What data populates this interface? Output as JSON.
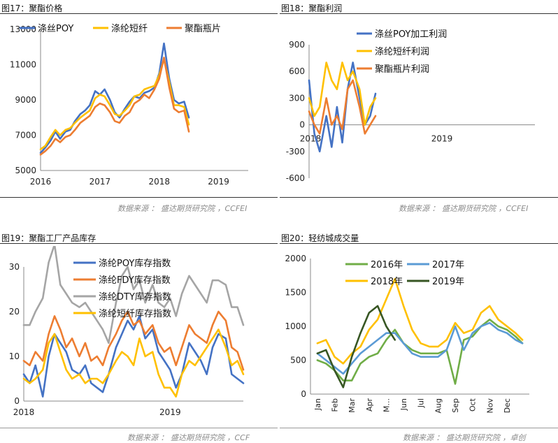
{
  "panels": [
    {
      "title": "图17：聚酯价格",
      "source": "数据来源 ： 盛达期货研究院 ，CCFEI"
    },
    {
      "title": "图18：聚酯利润",
      "source": "数据来源 ： 盛达期货研究院 ，CCFEI"
    },
    {
      "title": "图19：聚酯工厂产品库存",
      "source": "数据来源 ： 盛达期货研究院 ，CCF"
    },
    {
      "title": "图20：轻纺城成交量",
      "source": "数据来源 ： 盛达期货研究院 ，卓创"
    }
  ],
  "chart_data": [
    {
      "type": "line",
      "x_ticks": [
        "2016",
        "2017",
        "2018",
        "2019"
      ],
      "x": [
        2016.0,
        2016.08,
        2016.17,
        2016.25,
        2016.33,
        2016.42,
        2016.5,
        2016.58,
        2016.67,
        2016.75,
        2016.83,
        2016.92,
        2017.0,
        2017.08,
        2017.17,
        2017.25,
        2017.33,
        2017.42,
        2017.5,
        2017.58,
        2017.67,
        2017.75,
        2017.83,
        2017.92,
        2018.0,
        2018.08,
        2018.17,
        2018.25,
        2018.33,
        2018.42,
        2018.5
      ],
      "ylim": [
        5000,
        13000
      ],
      "y_ticks": [
        5000,
        7000,
        9000,
        11000,
        13000
      ],
      "legend_position": "top",
      "colors": [
        "#4472c4",
        "#ffc000",
        "#ed7d31"
      ],
      "series": [
        {
          "name": "涤丝POY",
          "values": [
            6000,
            6300,
            6700,
            7200,
            6800,
            7200,
            7300,
            7800,
            8200,
            8400,
            8700,
            9500,
            9300,
            9600,
            9000,
            8300,
            8000,
            8500,
            8900,
            9200,
            9100,
            9400,
            9500,
            9700,
            10500,
            12200,
            10200,
            9000,
            8800,
            8900,
            8000
          ]
        },
        {
          "name": "涤纶短纤",
          "values": [
            6200,
            6400,
            6900,
            7300,
            7000,
            7300,
            7400,
            7700,
            8000,
            8200,
            8400,
            9100,
            9300,
            9200,
            8700,
            8200,
            8100,
            8400,
            8700,
            9200,
            9300,
            9600,
            9700,
            9800,
            10400,
            11300,
            10000,
            8700,
            8700,
            8600,
            7600
          ]
        },
        {
          "name": "聚酯瓶片",
          "values": [
            5900,
            6100,
            6400,
            6800,
            6600,
            6900,
            7000,
            7300,
            7700,
            7900,
            8100,
            8600,
            8800,
            8700,
            8300,
            7800,
            7700,
            8100,
            8300,
            8800,
            9000,
            9300,
            9100,
            9600,
            10200,
            11400,
            9700,
            8500,
            8300,
            8400,
            7200
          ]
        }
      ]
    },
    {
      "type": "line",
      "x_ticks": [
        "2018",
        "2019"
      ],
      "x": [
        2018.0,
        2018.04,
        2018.08,
        2018.13,
        2018.17,
        2018.21,
        2018.25,
        2018.29,
        2018.33,
        2018.38,
        2018.42,
        2018.46,
        2018.5
      ],
      "ylim": [
        -600,
        900
      ],
      "y_ticks": [
        -600,
        -300,
        0,
        300,
        600,
        900
      ],
      "legend_position": "top-left",
      "colors": [
        "#4472c4",
        "#ffc000",
        "#ed7d31"
      ],
      "series": [
        {
          "name": "涤丝POY加工利润",
          "values": [
            500,
            -100,
            -300,
            100,
            -250,
            200,
            -200,
            400,
            700,
            300,
            0,
            100,
            350
          ]
        },
        {
          "name": "涤纶短纤利润",
          "values": [
            300,
            100,
            200,
            700,
            500,
            400,
            700,
            500,
            600,
            400,
            0,
            200,
            300
          ]
        },
        {
          "name": "聚酯瓶片利润",
          "values": [
            150,
            0,
            -100,
            300,
            0,
            100,
            -50,
            400,
            500,
            200,
            -100,
            0,
            100
          ]
        }
      ]
    },
    {
      "type": "line",
      "x_ticks": [
        "2018",
        "2019"
      ],
      "x": [
        2018.0,
        2018.04,
        2018.08,
        2018.13,
        2018.17,
        2018.21,
        2018.25,
        2018.29,
        2018.33,
        2018.38,
        2018.42,
        2018.46,
        2018.5,
        2018.54,
        2018.58,
        2018.63,
        2018.67,
        2018.71,
        2018.75,
        2018.79,
        2018.83,
        2018.88,
        2018.92,
        2018.96,
        2019.0,
        2019.04,
        2019.08,
        2019.13,
        2019.17,
        2019.21,
        2019.25,
        2019.29,
        2019.33,
        2019.38,
        2019.42,
        2019.46,
        2019.5
      ],
      "ylim": [
        0,
        30
      ],
      "y_ticks": [
        0,
        10,
        20,
        30
      ],
      "legend_position": "top",
      "colors": [
        "#4472c4",
        "#ed7d31",
        "#a5a5a5",
        "#ffc000"
      ],
      "series": [
        {
          "name": "涤纶POY库存指数",
          "values": [
            6,
            4,
            8,
            1,
            10,
            15,
            13,
            11,
            7,
            6,
            8,
            4,
            3,
            2,
            6,
            12,
            15,
            18,
            16,
            19,
            14,
            16,
            11,
            9,
            7,
            3,
            6,
            13,
            11,
            9,
            6,
            12,
            15,
            14,
            6,
            5,
            4
          ]
        },
        {
          "name": "涤纶FDY库存指数",
          "values": [
            9,
            8,
            11,
            9,
            15,
            19,
            16,
            12,
            14,
            10,
            13,
            9,
            10,
            8,
            12,
            15,
            18,
            20,
            17,
            18,
            15,
            17,
            13,
            11,
            12,
            8,
            12,
            17,
            15,
            14,
            13,
            17,
            20,
            18,
            12,
            11,
            7
          ]
        },
        {
          "name": "涤纶DTY库存指数",
          "values": [
            17,
            17,
            20,
            23,
            31,
            35,
            26,
            24,
            22,
            21,
            22,
            20,
            18,
            16,
            13,
            22,
            28,
            30,
            25,
            27,
            22,
            26,
            22,
            21,
            23,
            19,
            24,
            28,
            26,
            24,
            22,
            27,
            27,
            26,
            21,
            21,
            17
          ]
        },
        {
          "name": "涤纶短纤库存指数",
          "values": [
            5,
            4,
            5,
            7,
            13,
            15,
            11,
            7,
            5,
            6,
            4,
            5,
            5,
            4,
            6,
            9,
            11,
            10,
            8,
            14,
            10,
            11,
            6,
            3,
            3,
            1,
            6,
            9,
            8,
            10,
            12,
            14,
            16,
            12,
            8,
            9,
            6
          ]
        }
      ]
    },
    {
      "type": "line",
      "x_ticks": [
        "Jan",
        "Feb",
        "Mar",
        "Apr",
        "M...",
        "Jun",
        "Jul",
        "Aug",
        "Sep",
        "Oct",
        "Nov",
        "Dec"
      ],
      "x": [
        1.0,
        1.5,
        2.0,
        2.5,
        3.0,
        3.5,
        4.0,
        4.5,
        5.0,
        5.5,
        6.0,
        6.5,
        7.0,
        7.5,
        8.0,
        8.5,
        9.0,
        9.5,
        10.0,
        10.5,
        11.0,
        11.5,
        12.0,
        12.5,
        12.9
      ],
      "ylim": [
        0,
        2000
      ],
      "y_ticks": [
        0,
        500,
        1000,
        1500,
        2000
      ],
      "legend_position": "top",
      "colors": [
        "#70ad47",
        "#5b9bd5",
        "#ffc000",
        "#375623"
      ],
      "series": [
        {
          "name": "2016年",
          "values": [
            500,
            450,
            350,
            200,
            200,
            450,
            550,
            600,
            800,
            950,
            750,
            650,
            600,
            600,
            600,
            650,
            150,
            800,
            850,
            1000,
            1100,
            1000,
            950,
            850,
            750
          ]
        },
        {
          "name": "2017年",
          "values": [
            600,
            500,
            400,
            300,
            450,
            600,
            700,
            800,
            900,
            900,
            750,
            600,
            550,
            550,
            550,
            650,
            1000,
            650,
            900,
            1000,
            1050,
            950,
            900,
            800,
            750
          ]
        },
        {
          "name": "2018年",
          "values": [
            750,
            800,
            550,
            450,
            600,
            700,
            950,
            1100,
            1400,
            1700,
            1300,
            950,
            750,
            700,
            700,
            800,
            1050,
            900,
            950,
            1200,
            1300,
            1100,
            1000,
            900,
            800
          ]
        },
        {
          "name": "2019年",
          "values": [
            600,
            650,
            350,
            100,
            550,
            900,
            1200,
            1300,
            1000,
            800,
            null,
            null,
            null,
            null,
            null,
            null,
            null,
            null,
            null,
            null,
            null,
            null,
            null,
            null,
            null
          ]
        }
      ]
    }
  ]
}
